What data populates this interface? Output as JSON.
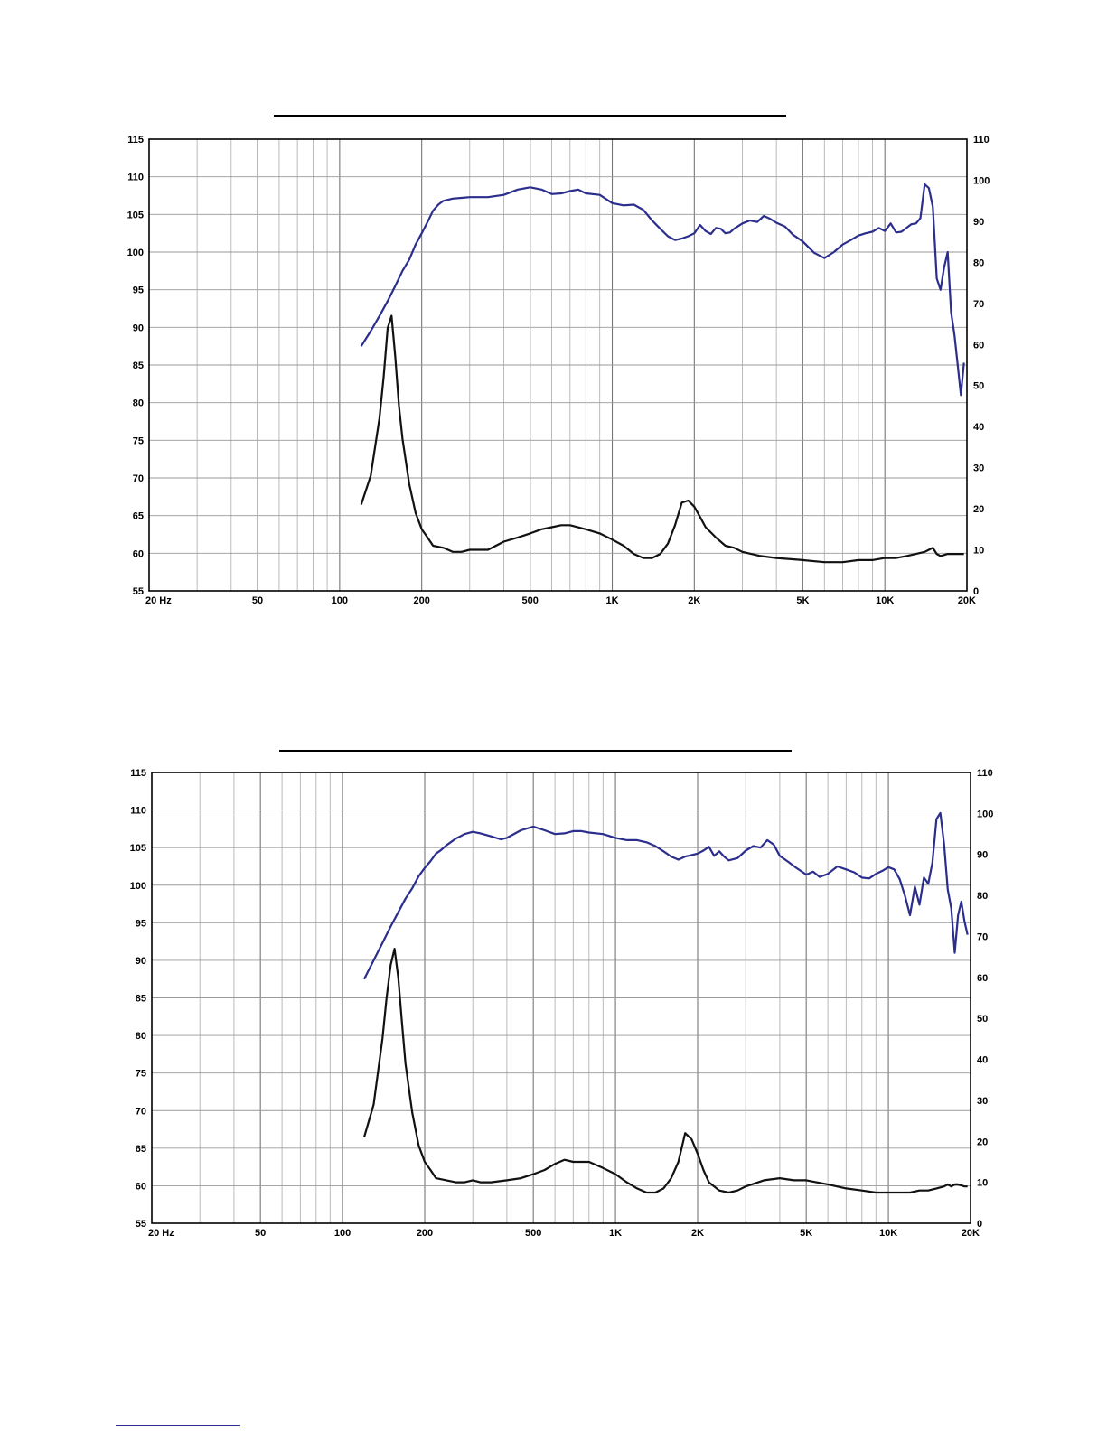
{
  "colors": {
    "spl": "#2b2e8c",
    "impedance": "#111111",
    "grid": "#888888"
  },
  "chart_data": [
    {
      "type": "line",
      "title": "",
      "x_scale": "log",
      "xlim": [
        20,
        20000
      ],
      "ylim": [
        55,
        115
      ],
      "y2lim": [
        0,
        110
      ],
      "grid": true,
      "legend": "none",
      "x_ticks": [
        20,
        50,
        100,
        200,
        500,
        1000,
        2000,
        5000,
        10000,
        20000
      ],
      "x_tick_labels": [
        "20  Hz",
        "50",
        "100",
        "200",
        "500",
        "1K",
        "2K",
        "5K",
        "10K",
        "20K"
      ],
      "y_ticks": [
        55,
        60,
        65,
        70,
        75,
        80,
        85,
        90,
        95,
        100,
        105,
        110,
        115
      ],
      "y_tick_labels": [
        "55",
        "60",
        "65",
        "70",
        "75",
        "80",
        "85",
        "90",
        "95",
        "100",
        "105",
        "110",
        "115"
      ],
      "y2_ticks": [
        0,
        10,
        20,
        30,
        40,
        50,
        60,
        70,
        80,
        90,
        100,
        110
      ],
      "y2_tick_labels": [
        "0",
        "10",
        "20",
        "30",
        "40",
        "50",
        "60",
        "70",
        "80",
        "90",
        "100",
        "110"
      ],
      "series": [
        {
          "axis": "left",
          "x": [
            120,
            130,
            140,
            150,
            160,
            170,
            180,
            190,
            200,
            210,
            220,
            230,
            240,
            260,
            280,
            300,
            350,
            400,
            450,
            500,
            550,
            600,
            650,
            700,
            750,
            800,
            900,
            1000,
            1100,
            1200,
            1300,
            1400,
            1500,
            1600,
            1700,
            1800,
            1900,
            2000,
            2100,
            2200,
            2300,
            2400,
            2500,
            2600,
            2700,
            2800,
            3000,
            3200,
            3400,
            3600,
            3800,
            4000,
            4300,
            4600,
            5000,
            5500,
            6000,
            6500,
            7000,
            7500,
            8000,
            8500,
            9000,
            9500,
            10000,
            10500,
            11000,
            11500,
            12000,
            12500,
            13000,
            13500,
            14000,
            14500,
            15000,
            15500,
            16000,
            16500,
            17000,
            17500,
            18000,
            18500,
            19000,
            19500
          ],
          "y": [
            87.5,
            89.5,
            91.5,
            93.5,
            95.5,
            97.5,
            99,
            101,
            102.5,
            104,
            105.5,
            106.3,
            106.8,
            107.1,
            107.2,
            107.3,
            107.3,
            107.6,
            108.3,
            108.6,
            108.3,
            107.7,
            107.8,
            108.1,
            108.3,
            107.8,
            107.6,
            106.5,
            106.2,
            106.3,
            105.6,
            104.2,
            103.1,
            102.1,
            101.6,
            101.8,
            102.1,
            102.5,
            103.6,
            102.8,
            102.4,
            103.2,
            103.1,
            102.5,
            102.6,
            103.1,
            103.8,
            104.2,
            104.0,
            104.8,
            104.4,
            103.9,
            103.4,
            102.3,
            101.4,
            99.9,
            99.2,
            100.0,
            101.0,
            101.6,
            102.2,
            102.5,
            102.7,
            103.2,
            102.8,
            103.8,
            102.6,
            102.7,
            103.2,
            103.7,
            103.8,
            104.5,
            109.0,
            108.5,
            106.0,
            96.5,
            95.0,
            98.0,
            100.0,
            92.0,
            89.0,
            85.0,
            81.0,
            85.3
          ]
        },
        {
          "axis": "right",
          "x": [
            120,
            130,
            140,
            145,
            150,
            155,
            160,
            165,
            170,
            180,
            190,
            200,
            210,
            220,
            240,
            260,
            280,
            300,
            350,
            400,
            450,
            500,
            550,
            600,
            650,
            700,
            800,
            900,
            1000,
            1100,
            1200,
            1300,
            1400,
            1500,
            1600,
            1700,
            1800,
            1900,
            2000,
            2100,
            2200,
            2400,
            2600,
            2800,
            3000,
            3500,
            4000,
            5000,
            6000,
            7000,
            8000,
            9000,
            10000,
            11000,
            12000,
            13000,
            14000,
            14500,
            15000,
            15500,
            16000,
            17000,
            18000,
            19000,
            19500
          ],
          "y": [
            21,
            28,
            42,
            52,
            64,
            67,
            57,
            45,
            37,
            26,
            19,
            15,
            13,
            11,
            10.5,
            9.5,
            9.5,
            10,
            10,
            12,
            13,
            14,
            15,
            15.5,
            16,
            16,
            15,
            14,
            12.5,
            11,
            9,
            8,
            8,
            9,
            11.5,
            16,
            21.5,
            22,
            20.5,
            18,
            15.5,
            13,
            11,
            10.5,
            9.5,
            8.5,
            8,
            7.5,
            7,
            7,
            7.5,
            7.5,
            8,
            8,
            8.5,
            9,
            9.5,
            10,
            10.5,
            9,
            8.5,
            9,
            9,
            9,
            9
          ]
        }
      ]
    },
    {
      "type": "line",
      "title": "",
      "x_scale": "log",
      "xlim": [
        20,
        20000
      ],
      "ylim": [
        55,
        115
      ],
      "y2lim": [
        0,
        110
      ],
      "grid": true,
      "legend": "none",
      "x_ticks": [
        20,
        50,
        100,
        200,
        500,
        1000,
        2000,
        5000,
        10000,
        20000
      ],
      "x_tick_labels": [
        "20  Hz",
        "50",
        "100",
        "200",
        "500",
        "1K",
        "2K",
        "5K",
        "10K",
        "20K"
      ],
      "y_ticks": [
        55,
        60,
        65,
        70,
        75,
        80,
        85,
        90,
        95,
        100,
        105,
        110,
        115
      ],
      "y_tick_labels": [
        "55",
        "60",
        "65",
        "70",
        "75",
        "80",
        "85",
        "90",
        "95",
        "100",
        "105",
        "110",
        "115"
      ],
      "y2_ticks": [
        0,
        10,
        20,
        30,
        40,
        50,
        60,
        70,
        80,
        90,
        100,
        110
      ],
      "y2_tick_labels": [
        "0",
        "10",
        "20",
        "30",
        "40",
        "50",
        "60",
        "70",
        "80",
        "90",
        "100",
        "110"
      ],
      "series": [
        {
          "axis": "left",
          "x": [
            120,
            130,
            140,
            150,
            160,
            170,
            180,
            190,
            200,
            210,
            220,
            230,
            240,
            260,
            280,
            300,
            320,
            350,
            380,
            400,
            450,
            500,
            550,
            600,
            650,
            700,
            750,
            800,
            900,
            1000,
            1100,
            1200,
            1300,
            1400,
            1500,
            1600,
            1700,
            1800,
            1900,
            2000,
            2100,
            2200,
            2300,
            2400,
            2500,
            2600,
            2800,
            3000,
            3200,
            3400,
            3600,
            3800,
            4000,
            4300,
            4600,
            5000,
            5300,
            5600,
            6000,
            6500,
            7000,
            7500,
            8000,
            8500,
            9000,
            9500,
            10000,
            10500,
            11000,
            11500,
            12000,
            12500,
            13000,
            13500,
            14000,
            14500,
            15000,
            15500,
            16000,
            16500,
            17000,
            17500,
            18000,
            18500,
            19000,
            19500
          ],
          "y": [
            87.5,
            90,
            92.3,
            94.5,
            96.4,
            98.2,
            99.6,
            101.2,
            102.3,
            103.2,
            104.2,
            104.7,
            105.3,
            106.2,
            106.8,
            107.1,
            106.9,
            106.5,
            106.1,
            106.3,
            107.3,
            107.8,
            107.3,
            106.8,
            106.9,
            107.2,
            107.2,
            107.0,
            106.8,
            106.3,
            106.0,
            106.0,
            105.7,
            105.2,
            104.5,
            103.8,
            103.4,
            103.8,
            104.0,
            104.2,
            104.6,
            105.1,
            103.9,
            104.5,
            103.8,
            103.3,
            103.6,
            104.6,
            105.2,
            105.0,
            106.0,
            105.4,
            103.9,
            103.1,
            102.3,
            101.4,
            101.8,
            101.1,
            101.5,
            102.5,
            102.1,
            101.7,
            101.0,
            100.9,
            101.5,
            101.9,
            102.4,
            102.1,
            100.8,
            98.6,
            96.0,
            99.8,
            97.4,
            101.0,
            100.2,
            103.0,
            108.8,
            109.6,
            105.5,
            99.4,
            96.9,
            91.0,
            96.0,
            97.8,
            95.2,
            93.4
          ]
        },
        {
          "axis": "right",
          "x": [
            120,
            130,
            140,
            145,
            150,
            155,
            160,
            165,
            170,
            180,
            190,
            200,
            210,
            220,
            240,
            260,
            280,
            300,
            320,
            350,
            400,
            450,
            500,
            550,
            600,
            650,
            700,
            800,
            900,
            1000,
            1100,
            1200,
            1300,
            1400,
            1500,
            1600,
            1700,
            1800,
            1900,
            2000,
            2100,
            2200,
            2400,
            2600,
            2800,
            3000,
            3500,
            4000,
            4500,
            5000,
            6000,
            7000,
            8000,
            9000,
            10000,
            11000,
            12000,
            13000,
            14000,
            15000,
            16000,
            16500,
            17000,
            17500,
            18000,
            19000,
            19500
          ],
          "y": [
            21,
            29,
            45,
            55,
            63,
            67,
            60,
            49,
            39,
            27,
            19,
            15,
            13,
            11,
            10.5,
            10,
            10,
            10.5,
            10,
            10,
            10.5,
            11,
            12,
            13,
            14.5,
            15.5,
            15,
            15,
            13.5,
            12,
            10,
            8.5,
            7.5,
            7.5,
            8.5,
            11,
            15,
            22,
            20.5,
            17,
            13,
            10,
            8,
            7.5,
            8,
            9,
            10.5,
            11,
            10.5,
            10.5,
            9.5,
            8.5,
            8,
            7.5,
            7.5,
            7.5,
            7.5,
            8,
            8,
            8.5,
            9,
            9.5,
            9,
            9.5,
            9.5,
            9,
            9
          ]
        }
      ]
    }
  ]
}
